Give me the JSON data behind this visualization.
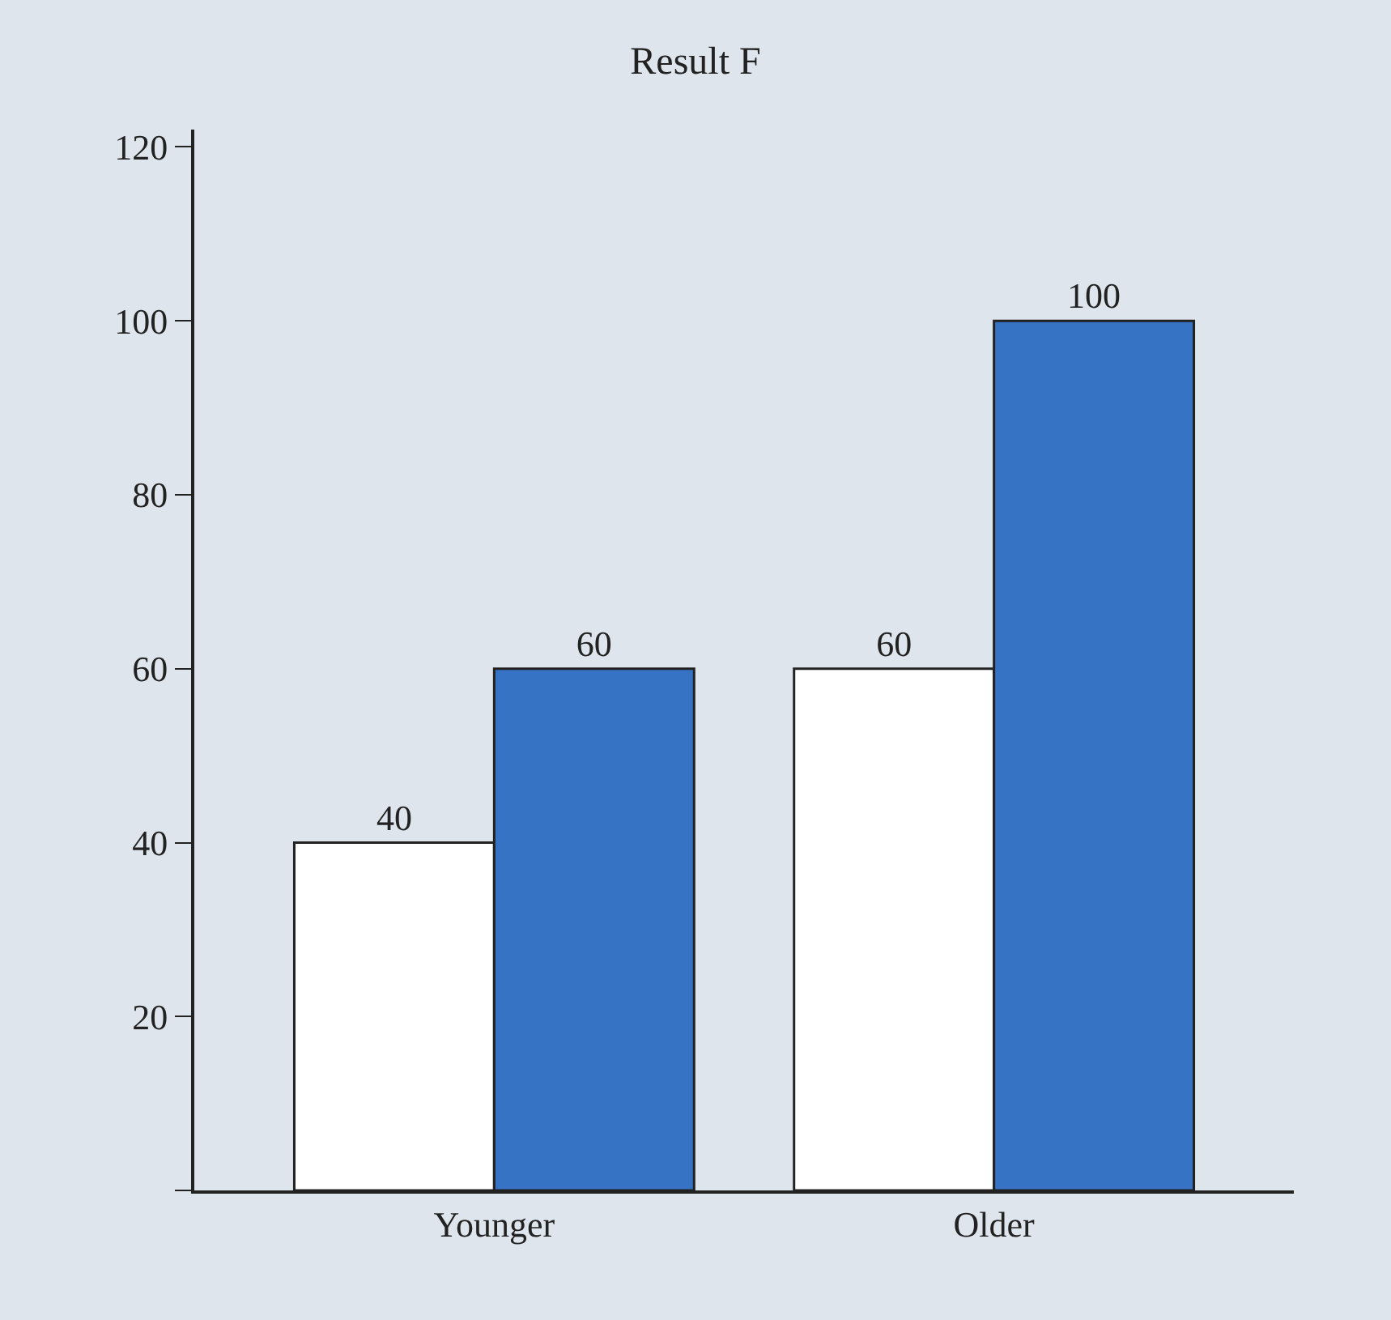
{
  "chart_data": {
    "type": "bar",
    "title": "Result F",
    "categories": [
      "Younger",
      "Older"
    ],
    "series": [
      {
        "color": "#ffffff",
        "values": [
          40,
          60
        ]
      },
      {
        "color": "#3673c4",
        "values": [
          60,
          100
        ]
      }
    ],
    "ylim": [
      0,
      122
    ],
    "yticks": [
      {
        "value": 0,
        "label": null
      },
      20,
      40,
      60,
      80,
      100,
      120
    ],
    "data_labels": true
  }
}
